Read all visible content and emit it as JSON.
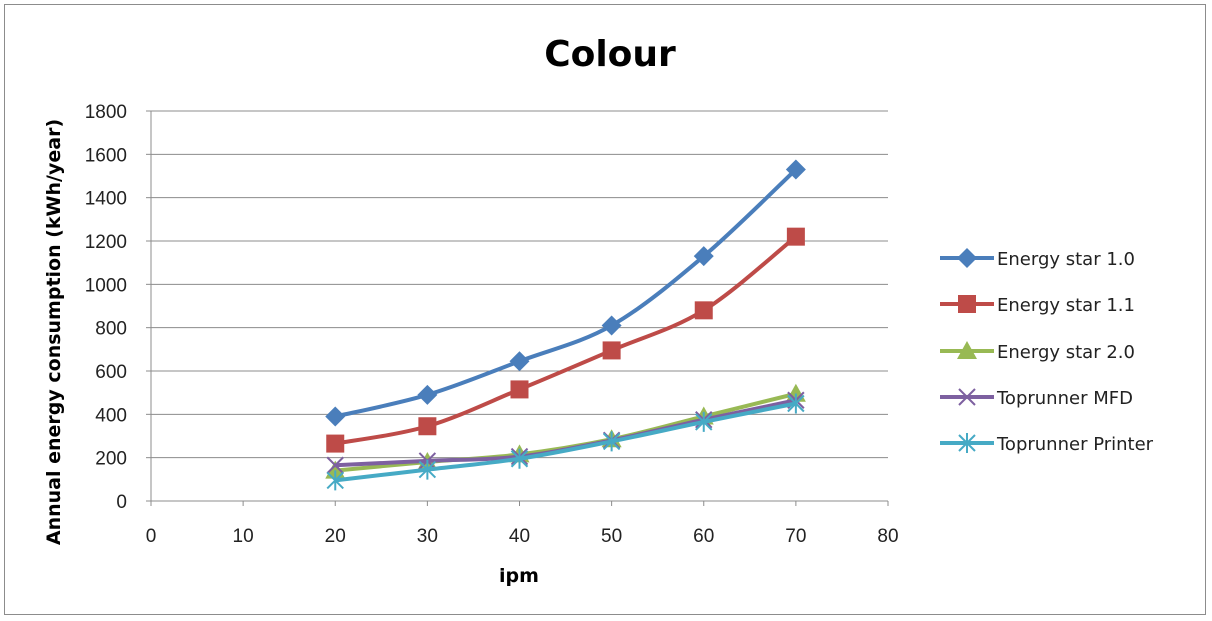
{
  "chart_data": {
    "type": "line",
    "title": "Colour",
    "xlabel": "ipm",
    "ylabel": "Annual energy consumption  (kWh/year)",
    "xlim": [
      0,
      80
    ],
    "ylim": [
      0,
      1800
    ],
    "xticks": [
      0,
      10,
      20,
      30,
      40,
      50,
      60,
      70,
      80
    ],
    "yticks": [
      0,
      200,
      400,
      600,
      800,
      1000,
      1200,
      1400,
      1600,
      1800
    ],
    "grid": "horizontal",
    "legend_position": "right",
    "x": [
      20,
      30,
      40,
      50,
      60,
      70
    ],
    "series": [
      {
        "name": "Energy star 1.0",
        "color": "#4a7ebb",
        "marker": "diamond",
        "values": [
          390,
          490,
          645,
          810,
          1130,
          1530
        ]
      },
      {
        "name": "Energy star 1.1",
        "color": "#be4b48",
        "marker": "square",
        "values": [
          265,
          345,
          515,
          695,
          880,
          1220
        ]
      },
      {
        "name": "Energy star 2.0",
        "color": "#98b954",
        "marker": "triangle",
        "values": [
          140,
          180,
          215,
          285,
          390,
          495
        ]
      },
      {
        "name": "Toprunner MFD",
        "color": "#7d60a0",
        "marker": "x",
        "values": [
          165,
          185,
          205,
          280,
          375,
          465
        ]
      },
      {
        "name": "Toprunner Printer",
        "color": "#46aac5",
        "marker": "asterisk",
        "values": [
          95,
          145,
          195,
          275,
          365,
          450
        ]
      }
    ]
  }
}
